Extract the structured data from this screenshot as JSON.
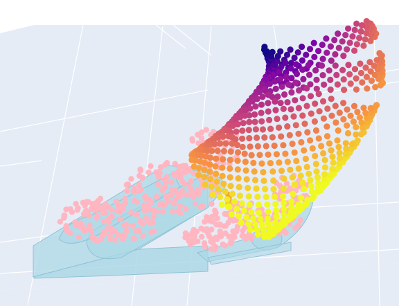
{
  "chart_data": {
    "type": "scatter3d",
    "title": "",
    "xlabel": "",
    "ylabel": "",
    "zlabel": "",
    "grid": true,
    "legend": "none",
    "colors": {
      "scene_background": "#e5ecf6",
      "grid_line": "#ffffff",
      "mesh": "#add8e6",
      "mesh_edge": "#8fc3d6",
      "pink_points": "#ffb6c1",
      "colorscale": [
        "#0d0887",
        "#7e03a8",
        "#cc4778",
        "#f89540",
        "#f0f921"
      ]
    },
    "series": [
      {
        "kind": "mesh",
        "color": "#add8e6",
        "opacity": 0.7
      },
      {
        "kind": "scatter",
        "color": "#ffb6c1",
        "count": 480
      },
      {
        "kind": "scatter",
        "colorscale": "plasma",
        "count": 1100
      }
    ]
  }
}
